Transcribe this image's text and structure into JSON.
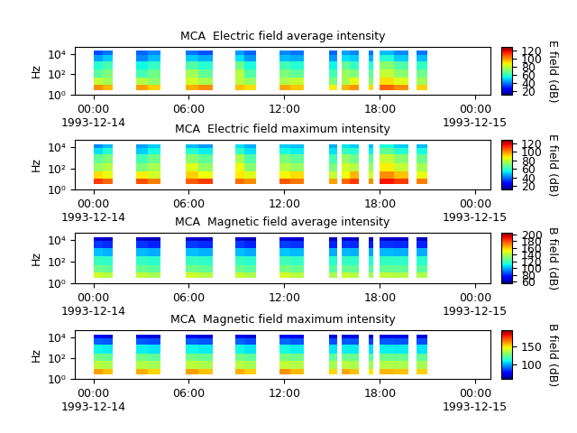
{
  "chart_data": [
    {
      "type": "heatmap",
      "title": "MCA  Electric field average intensity",
      "ylabel": "Hz",
      "log": "y",
      "xlim": [
        -1.15,
        24.95
      ],
      "xticks": [
        {
          "value": 0,
          "label": "00:00\n1993-12-14"
        },
        {
          "value": 6,
          "label": "06:00"
        },
        {
          "value": 12,
          "label": "12:00"
        },
        {
          "value": 18,
          "label": "18:00"
        },
        {
          "value": 24,
          "label": "00:00\n1993-12-15"
        }
      ],
      "ylim": [
        1,
        50000
      ],
      "yticks": [
        {
          "value": 1,
          "label": "10⁰"
        },
        {
          "value": 100,
          "label": "10²"
        },
        {
          "value": 10000,
          "label": "10⁴"
        }
      ],
      "x_edges": [
        0,
        0.6,
        1.2,
        2.7,
        3.4,
        4.2,
        5.8,
        6.6,
        7.5,
        8.9,
        9.5,
        10.2,
        11.7,
        12.4,
        13.2,
        14.8,
        15.3,
        15.6,
        16.1,
        16.7,
        17.3,
        17.6,
        18.0,
        18.9,
        19.8,
        20.3,
        21.0
      ],
      "y_edges": [
        3,
        10,
        50,
        300,
        2000,
        8000,
        20000
      ],
      "cells": [
        [
          100,
          95,
          null,
          98,
          92,
          null,
          96,
          100,
          null,
          94,
          90,
          null,
          97,
          93,
          null,
          88,
          null,
          95,
          99,
          null,
          90,
          null,
          105,
          100,
          null,
          92
        ],
        [
          80,
          75,
          null,
          78,
          72,
          null,
          82,
          76,
          null,
          79,
          74,
          null,
          77,
          80,
          null,
          70,
          null,
          76,
          85,
          null,
          72,
          null,
          90,
          84,
          null,
          75
        ],
        [
          65,
          70,
          null,
          62,
          68,
          null,
          75,
          66,
          null,
          78,
          64,
          null,
          70,
          66,
          null,
          62,
          null,
          74,
          70,
          null,
          66,
          null,
          80,
          72,
          null,
          68
        ],
        [
          58,
          62,
          null,
          55,
          60,
          null,
          64,
          58,
          null,
          68,
          56,
          null,
          62,
          58,
          null,
          55,
          null,
          66,
          60,
          null,
          58,
          null,
          72,
          64,
          null,
          60
        ],
        [
          45,
          50,
          null,
          42,
          48,
          null,
          50,
          46,
          null,
          52,
          44,
          null,
          48,
          46,
          null,
          44,
          null,
          52,
          50,
          null,
          46,
          null,
          58,
          50,
          null,
          48
        ],
        [
          35,
          40,
          null,
          38,
          42,
          null,
          40,
          36,
          null,
          44,
          38,
          null,
          42,
          40,
          null,
          38,
          null,
          45,
          42,
          null,
          40,
          null,
          48,
          42,
          null,
          40
        ]
      ],
      "colorbar": {
        "label": "E field (dB)",
        "range": [
          12,
          128
        ],
        "ticks": [
          20,
          40,
          60,
          80,
          100,
          120
        ]
      }
    },
    {
      "type": "heatmap",
      "title": "MCA  Electric field maximum intensity",
      "ylabel": "Hz",
      "log": "y",
      "xlim": [
        -1.15,
        24.95
      ],
      "xticks": [
        {
          "value": 0,
          "label": "00:00\n1993-12-14"
        },
        {
          "value": 6,
          "label": "06:00"
        },
        {
          "value": 12,
          "label": "12:00"
        },
        {
          "value": 18,
          "label": "18:00"
        },
        {
          "value": 24,
          "label": "00:00\n1993-12-15"
        }
      ],
      "ylim": [
        1,
        50000
      ],
      "yticks": [
        {
          "value": 1,
          "label": "10⁰"
        },
        {
          "value": 100,
          "label": "10²"
        },
        {
          "value": 10000,
          "label": "10⁴"
        }
      ],
      "x_edges": [
        0,
        0.6,
        1.2,
        2.7,
        3.4,
        4.2,
        5.8,
        6.6,
        7.5,
        8.9,
        9.5,
        10.2,
        11.7,
        12.4,
        13.2,
        14.8,
        15.3,
        15.6,
        16.1,
        16.7,
        17.3,
        17.6,
        18.0,
        18.9,
        19.8,
        20.3,
        21.0
      ],
      "y_edges": [
        3,
        10,
        50,
        300,
        2000,
        8000,
        20000
      ],
      "cells": [
        [
          110,
          105,
          null,
          108,
          102,
          null,
          106,
          110,
          null,
          104,
          100,
          null,
          107,
          103,
          null,
          98,
          null,
          105,
          110,
          null,
          100,
          null,
          115,
          110,
          null,
          102
        ],
        [
          90,
          85,
          null,
          88,
          82,
          null,
          92,
          86,
          null,
          89,
          84,
          null,
          87,
          90,
          null,
          80,
          null,
          86,
          95,
          null,
          82,
          null,
          100,
          94,
          null,
          85
        ],
        [
          74,
          78,
          null,
          70,
          76,
          null,
          84,
          74,
          null,
          86,
          72,
          null,
          78,
          74,
          null,
          70,
          null,
          82,
          78,
          null,
          74,
          null,
          88,
          80,
          null,
          76
        ],
        [
          66,
          70,
          null,
          62,
          68,
          null,
          72,
          66,
          null,
          76,
          64,
          null,
          70,
          66,
          null,
          62,
          null,
          74,
          68,
          null,
          66,
          null,
          80,
          72,
          null,
          68
        ],
        [
          52,
          58,
          null,
          50,
          56,
          null,
          58,
          54,
          null,
          60,
          52,
          null,
          56,
          54,
          null,
          52,
          null,
          60,
          58,
          null,
          54,
          null,
          66,
          58,
          null,
          56
        ],
        [
          42,
          48,
          null,
          45,
          50,
          null,
          48,
          44,
          null,
          52,
          46,
          null,
          50,
          48,
          null,
          46,
          null,
          53,
          50,
          null,
          48,
          null,
          56,
          50,
          null,
          48
        ]
      ],
      "colorbar": {
        "label": "E field (dB)",
        "range": [
          12,
          128
        ],
        "ticks": [
          20,
          40,
          60,
          80,
          100,
          120
        ]
      }
    },
    {
      "type": "heatmap",
      "title": "MCA  Magnetic field average intensity",
      "ylabel": "Hz",
      "log": "y",
      "xlim": [
        -1.15,
        24.95
      ],
      "xticks": [
        {
          "value": 0,
          "label": "00:00\n1993-12-14"
        },
        {
          "value": 6,
          "label": "06:00"
        },
        {
          "value": 12,
          "label": "12:00"
        },
        {
          "value": 18,
          "label": "18:00"
        },
        {
          "value": 24,
          "label": "00:00\n1993-12-15"
        }
      ],
      "ylim": [
        1,
        50000
      ],
      "yticks": [
        {
          "value": 1,
          "label": "10⁰"
        },
        {
          "value": 100,
          "label": "10²"
        },
        {
          "value": 10000,
          "label": "10⁴"
        }
      ],
      "x_edges": [
        0,
        0.6,
        1.2,
        2.7,
        3.4,
        4.2,
        5.8,
        6.6,
        7.5,
        8.9,
        9.5,
        10.2,
        11.7,
        12.4,
        13.2,
        14.8,
        15.3,
        15.6,
        16.1,
        16.7,
        17.3,
        17.6,
        18.0,
        18.9,
        19.8,
        20.3,
        21.0
      ],
      "y_edges": [
        3,
        10,
        50,
        300,
        2000,
        8000,
        20000
      ],
      "cells": [
        [
          145,
          140,
          null,
          142,
          138,
          null,
          145,
          140,
          null,
          143,
          139,
          null,
          146,
          141,
          null,
          138,
          null,
          144,
          140,
          null,
          137,
          null,
          142,
          140,
          null,
          139
        ],
        [
          128,
          125,
          null,
          126,
          124,
          null,
          128,
          125,
          null,
          127,
          124,
          null,
          129,
          126,
          null,
          124,
          null,
          127,
          125,
          null,
          123,
          null,
          126,
          125,
          null,
          124
        ],
        [
          118,
          116,
          null,
          117,
          115,
          null,
          118,
          116,
          null,
          118,
          115,
          null,
          119,
          117,
          null,
          115,
          null,
          117,
          116,
          null,
          114,
          null,
          117,
          116,
          null,
          115
        ],
        [
          102,
          100,
          null,
          101,
          99,
          null,
          102,
          100,
          null,
          102,
          99,
          null,
          103,
          101,
          null,
          99,
          null,
          101,
          100,
          null,
          98,
          null,
          101,
          100,
          null,
          99
        ],
        [
          82,
          80,
          null,
          81,
          79,
          null,
          82,
          80,
          null,
          82,
          79,
          null,
          83,
          81,
          null,
          79,
          null,
          81,
          80,
          null,
          78,
          null,
          81,
          80,
          null,
          79
        ],
        [
          66,
          64,
          null,
          65,
          63,
          null,
          66,
          64,
          null,
          66,
          63,
          null,
          67,
          65,
          null,
          63,
          null,
          65,
          64,
          null,
          62,
          null,
          65,
          64,
          null,
          63
        ]
      ],
      "colorbar": {
        "label": "B field (dB)",
        "range": [
          55,
          205
        ],
        "ticks": [
          60,
          80,
          100,
          120,
          140,
          160,
          180,
          200
        ]
      }
    },
    {
      "type": "heatmap",
      "title": "MCA  Magnetic field maximum intensity",
      "ylabel": "Hz",
      "log": "y",
      "xlim": [
        -1.15,
        24.95
      ],
      "xticks": [
        {
          "value": 0,
          "label": "00:00\n1993-12-14"
        },
        {
          "value": 6,
          "label": "06:00"
        },
        {
          "value": 12,
          "label": "12:00"
        },
        {
          "value": 18,
          "label": "18:00"
        },
        {
          "value": 24,
          "label": "00:00\n1993-12-15"
        }
      ],
      "ylim": [
        1,
        50000
      ],
      "yticks": [
        {
          "value": 1,
          "label": "10⁰"
        },
        {
          "value": 100,
          "label": "10²"
        },
        {
          "value": 10000,
          "label": "10⁴"
        }
      ],
      "x_edges": [
        0,
        0.6,
        1.2,
        2.7,
        3.4,
        4.2,
        5.8,
        6.6,
        7.5,
        8.9,
        9.5,
        10.2,
        11.7,
        12.4,
        13.2,
        14.8,
        15.3,
        15.6,
        16.1,
        16.7,
        17.3,
        17.6,
        18.0,
        18.9,
        19.8,
        20.3,
        21.0
      ],
      "y_edges": [
        3,
        10,
        50,
        300,
        2000,
        8000,
        20000
      ],
      "cells": [
        [
          160,
          155,
          null,
          158,
          152,
          null,
          160,
          155,
          null,
          158,
          153,
          null,
          162,
          156,
          null,
          152,
          null,
          159,
          155,
          null,
          150,
          null,
          157,
          155,
          null,
          153
        ],
        [
          138,
          135,
          null,
          136,
          134,
          null,
          138,
          135,
          null,
          137,
          134,
          null,
          139,
          136,
          null,
          134,
          null,
          137,
          135,
          null,
          133,
          null,
          136,
          135,
          null,
          134
        ],
        [
          126,
          124,
          null,
          125,
          123,
          null,
          126,
          124,
          null,
          126,
          123,
          null,
          127,
          125,
          null,
          123,
          null,
          125,
          124,
          null,
          122,
          null,
          125,
          124,
          null,
          123
        ],
        [
          110,
          108,
          null,
          109,
          107,
          null,
          110,
          108,
          null,
          110,
          107,
          null,
          111,
          109,
          null,
          107,
          null,
          109,
          108,
          null,
          106,
          null,
          109,
          108,
          null,
          107
        ],
        [
          90,
          88,
          null,
          89,
          87,
          null,
          90,
          88,
          null,
          90,
          87,
          null,
          91,
          89,
          null,
          87,
          null,
          89,
          88,
          null,
          86,
          null,
          89,
          88,
          null,
          87
        ],
        [
          74,
          72,
          null,
          73,
          71,
          null,
          74,
          72,
          null,
          74,
          71,
          null,
          75,
          73,
          null,
          71,
          null,
          73,
          72,
          null,
          70,
          null,
          73,
          72,
          null,
          71
        ]
      ],
      "colorbar": {
        "label": "B field (dB)",
        "range": [
          60,
          195
        ],
        "ticks": [
          100,
          150
        ]
      }
    }
  ]
}
